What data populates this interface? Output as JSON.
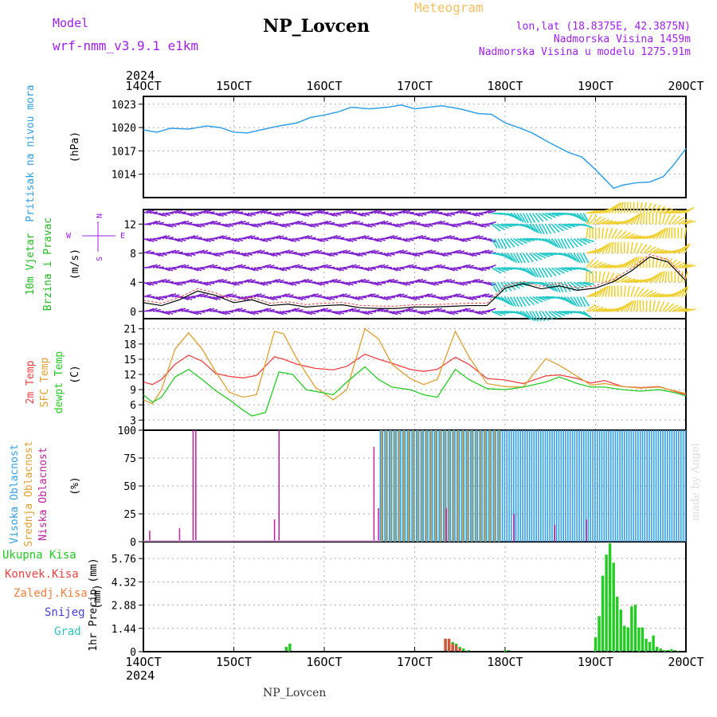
{
  "header": {
    "title": "NP_Lovcen",
    "model_label": "Model",
    "model_name": "wrf-nmm_v3.9.1 e1km",
    "meteogram": "Meteogram",
    "coords": "lon,lat (18.8375E, 42.3875N)",
    "elevation": "Nadmorska Visina 1459m",
    "elevation_model": "Nadmorska Visina u modelu 1275.91m"
  },
  "footer": {
    "station": "NP_Lovcen",
    "credit": "made by Angel"
  },
  "colors": {
    "pressure": "#30a0e8",
    "wind_label": "#22bb22",
    "t2m": "#f04040",
    "sfc": "#e0a030",
    "dew": "#22cc22",
    "cloud_high": "#30a0e8",
    "cloud_mid": "#e0a030",
    "cloud_low": "#c020a0",
    "precip_total": "#22cc22",
    "precip_conv": "#f04040",
    "precip_frz": "#f08040",
    "precip_snow": "#4040e0",
    "precip_grad": "#30c0c0",
    "meta": "#a020f0"
  },
  "chart_data": [
    {
      "type": "line",
      "panel": "pressure",
      "y_title": "Pritisak na nivou mora",
      "ylabel": "(hPa)",
      "y_ticks": [
        "1023",
        "1020",
        "1017",
        "1014"
      ],
      "ylim": [
        1011.0,
        1024.0
      ],
      "xlim": [
        14.0,
        20.0
      ],
      "x_ticks": [
        "14OCT",
        "15OCT",
        "16OCT",
        "17OCT",
        "18OCT",
        "19OCT",
        "20OCT"
      ],
      "x_year": "2024",
      "grid": true,
      "series": [
        {
          "x": [
            14.0,
            14.15,
            14.3,
            14.5,
            14.7,
            14.85,
            15.0,
            15.15,
            15.3,
            15.5,
            15.7,
            15.85,
            16.0,
            16.15,
            16.3,
            16.5,
            16.7,
            16.85,
            17.0,
            17.15,
            17.3,
            17.5,
            17.7,
            17.85,
            18.0,
            18.15,
            18.3,
            18.5,
            18.7,
            18.85,
            19.0,
            19.1,
            19.2,
            19.3,
            19.45,
            19.6,
            19.75,
            19.85,
            20.0
          ],
          "y": [
            1019.7,
            1019.4,
            1019.9,
            1019.8,
            1020.2,
            1020.0,
            1019.4,
            1019.3,
            1019.7,
            1020.2,
            1020.6,
            1021.3,
            1021.6,
            1022.0,
            1022.6,
            1022.4,
            1022.6,
            1022.9,
            1022.4,
            1022.6,
            1022.8,
            1022.4,
            1021.8,
            1021.7,
            1020.6,
            1020.0,
            1019.3,
            1018.0,
            1016.8,
            1016.2,
            1014.6,
            1013.4,
            1012.2,
            1012.6,
            1012.9,
            1013.0,
            1013.7,
            1015.0,
            1017.3
          ]
        }
      ]
    },
    {
      "type": "line",
      "panel": "wind",
      "y_title": [
        "10m Vjetar",
        "Brzina i Pravac"
      ],
      "ylabel": "(m/s)",
      "y_ticks": [
        "12",
        "8",
        "4",
        "0"
      ],
      "ylim": [
        -1,
        14
      ],
      "xlim": [
        14.0,
        20.0
      ],
      "compass": {
        "n": "N",
        "s": "S",
        "e": "E",
        "w": "W"
      },
      "grid": true,
      "barbs": [
        {
          "color": "#8020d0",
          "x_range": [
            14.0,
            17.85
          ]
        },
        {
          "color": "#20c8c8",
          "x_range": [
            17.85,
            18.9
          ]
        },
        {
          "color": "#f0d030",
          "x_range": [
            18.9,
            20.0
          ]
        }
      ],
      "series": [
        {
          "name": "speed",
          "x": [
            14.0,
            14.2,
            14.4,
            14.6,
            14.8,
            15.0,
            15.2,
            15.4,
            15.6,
            15.8,
            16.0,
            16.2,
            16.4,
            16.6,
            16.8,
            17.0,
            17.2,
            17.4,
            17.6,
            17.8,
            18.0,
            18.2,
            18.4,
            18.6,
            18.8,
            19.0,
            19.2,
            19.4,
            19.6,
            19.8,
            20.0
          ],
          "y": [
            1.2,
            0.8,
            1.6,
            2.8,
            2.2,
            1.2,
            1.6,
            0.8,
            1.0,
            0.6,
            0.8,
            0.9,
            0.5,
            0.4,
            0.4,
            0.6,
            0.6,
            0.7,
            0.8,
            0.8,
            3.2,
            3.8,
            3.1,
            3.5,
            2.9,
            3.2,
            4.1,
            5.6,
            7.5,
            6.8,
            4.2
          ]
        }
      ]
    },
    {
      "type": "line",
      "panel": "temperature",
      "y_title": [
        "2m Temp",
        "SFC Temp",
        "dewpt Temp"
      ],
      "ylabel": "(C)",
      "y_ticks": [
        "21",
        "18",
        "15",
        "12",
        "9",
        "6",
        "3"
      ],
      "ylim": [
        1.0,
        23.0
      ],
      "xlim": [
        14.0,
        20.0
      ],
      "grid": true,
      "series": [
        {
          "name": "2m Temp",
          "x": [
            14.0,
            14.1,
            14.2,
            14.35,
            14.5,
            14.65,
            14.8,
            14.95,
            15.1,
            15.25,
            15.45,
            15.55,
            15.7,
            15.9,
            16.1,
            16.25,
            16.45,
            16.6,
            16.75,
            16.95,
            17.1,
            17.25,
            17.45,
            17.6,
            17.8,
            18.0,
            18.2,
            18.45,
            18.6,
            18.8,
            18.95,
            19.1,
            19.3,
            19.5,
            19.7,
            19.85,
            20.0
          ],
          "y": [
            10.5,
            10.0,
            11.0,
            14.0,
            15.8,
            14.6,
            12.2,
            11.6,
            11.3,
            11.8,
            15.5,
            15.0,
            14.0,
            13.2,
            12.9,
            13.6,
            16.0,
            15.0,
            14.2,
            13.0,
            12.6,
            13.0,
            15.4,
            14.0,
            11.2,
            10.9,
            10.2,
            11.7,
            11.9,
            11.2,
            10.3,
            10.8,
            9.6,
            9.4,
            9.6,
            8.8,
            8.0
          ]
        },
        {
          "name": "SFC Temp",
          "x": [
            14.0,
            14.1,
            14.2,
            14.35,
            14.5,
            14.65,
            14.8,
            14.95,
            15.1,
            15.25,
            15.45,
            15.55,
            15.7,
            15.9,
            16.1,
            16.25,
            16.45,
            16.6,
            16.75,
            16.95,
            17.1,
            17.25,
            17.45,
            17.6,
            17.8,
            18.0,
            18.2,
            18.45,
            18.6,
            18.8,
            18.95,
            19.1,
            19.3,
            19.5,
            19.7,
            19.85,
            20.0
          ],
          "y": [
            7.0,
            6.2,
            9.0,
            17.0,
            20.2,
            17.0,
            12.5,
            8.5,
            7.5,
            8.0,
            20.5,
            20.0,
            15.0,
            9.5,
            7.0,
            9.0,
            21.0,
            19.0,
            14.0,
            11.2,
            10.0,
            11.0,
            20.5,
            15.5,
            10.2,
            9.6,
            9.5,
            15.1,
            13.8,
            11.6,
            9.9,
            10.2,
            9.6,
            9.3,
            9.5,
            8.9,
            8.2
          ]
        },
        {
          "name": "dewpt Temp",
          "x": [
            14.0,
            14.1,
            14.2,
            14.35,
            14.5,
            14.65,
            14.8,
            14.95,
            15.1,
            15.2,
            15.35,
            15.5,
            15.65,
            15.8,
            15.95,
            16.1,
            16.25,
            16.45,
            16.6,
            16.75,
            16.95,
            17.1,
            17.25,
            17.45,
            17.6,
            17.8,
            18.0,
            18.2,
            18.45,
            18.6,
            18.8,
            18.95,
            19.1,
            19.3,
            19.5,
            19.7,
            19.85,
            20.0
          ],
          "y": [
            8.0,
            6.5,
            7.5,
            11.5,
            13.0,
            11.0,
            8.8,
            7.0,
            5.0,
            3.8,
            4.5,
            12.5,
            12.0,
            9.0,
            8.5,
            8.0,
            10.5,
            13.5,
            11.0,
            9.5,
            9.0,
            8.0,
            7.5,
            13.0,
            11.0,
            9.2,
            9.0,
            9.5,
            10.5,
            11.5,
            10.2,
            9.5,
            9.5,
            9.0,
            8.7,
            9.0,
            8.5,
            7.8
          ]
        }
      ]
    },
    {
      "type": "bar",
      "panel": "clouds",
      "y_title": [
        "Visoka Oblacnost",
        "Srednja Oblacnost",
        "Niska Oblacnost"
      ],
      "ylabel": "(%)",
      "y_ticks": [
        "100",
        "75",
        "50",
        "25",
        "0"
      ],
      "ylim": [
        0,
        100
      ],
      "xlim": [
        14.0,
        20.0
      ],
      "grid": true,
      "series": [
        {
          "name": "Niska Oblacnost",
          "x": [
            14.07,
            14.4,
            14.55,
            14.58,
            15.45,
            15.5,
            16.55,
            16.6,
            17.35,
            18.1,
            18.55,
            18.9
          ],
          "values": [
            10,
            12,
            100,
            100,
            20,
            100,
            85,
            30,
            30,
            25,
            15,
            20
          ]
        },
        {
          "name": "Srednja Oblacnost",
          "x_range": [
            16.62,
            17.97
          ],
          "value": 100
        },
        {
          "name": "Visoka Oblacnost",
          "x_range": [
            16.62,
            20.0
          ],
          "value": 100
        }
      ]
    },
    {
      "type": "bar",
      "panel": "precip",
      "y_title": "1hr Precip",
      "ylabel": "(mm)",
      "y_ticks": [
        "5.76",
        "4.32",
        "2.88",
        "1.44",
        "0"
      ],
      "ylim": [
        0,
        6.8
      ],
      "xlim": [
        14.0,
        20.0
      ],
      "x_ticks": [
        "14OCT",
        "15OCT",
        "16OCT",
        "17OCT",
        "18OCT",
        "19OCT",
        "20OCT"
      ],
      "x_year": "2024",
      "legend": [
        "Ukupna Kisa",
        "Konvek.Kisa",
        "Zaledj.Kisa",
        "Snijeg",
        "Grad"
      ],
      "grid": true,
      "series": [
        {
          "name": "Ukupna Kisa",
          "x": [
            15.58,
            15.62,
            17.34,
            17.38,
            17.42,
            17.46,
            17.5,
            17.54,
            17.6,
            18.0,
            18.04,
            19.0,
            19.04,
            19.08,
            19.12,
            19.16,
            19.2,
            19.24,
            19.28,
            19.32,
            19.36,
            19.4,
            19.44,
            19.48,
            19.52,
            19.56,
            19.6,
            19.64,
            19.68,
            19.72,
            19.76,
            19.8,
            19.84,
            19.88,
            19.92
          ],
          "values": [
            0.3,
            0.5,
            0.8,
            0.8,
            0.6,
            0.5,
            0.3,
            0.2,
            0.1,
            0.1,
            0.1,
            0.9,
            2.2,
            4.7,
            6.0,
            6.7,
            5.5,
            3.4,
            2.6,
            1.6,
            1.5,
            2.8,
            2.9,
            1.5,
            1.5,
            0.8,
            0.6,
            1.0,
            0.3,
            0.2,
            0.1,
            0.1,
            0.15,
            0.1,
            0.05
          ]
        },
        {
          "name": "Konvek.Kisa",
          "x": [
            17.34,
            17.38,
            17.42,
            17.46,
            17.5
          ],
          "values": [
            0.8,
            0.8,
            0.5,
            0.4,
            0.2
          ]
        },
        {
          "name": "Zaledj.Kisa",
          "x": [],
          "values": []
        },
        {
          "name": "Snijeg",
          "x": [],
          "values": []
        },
        {
          "name": "Grad",
          "x": [],
          "values": []
        }
      ]
    }
  ]
}
